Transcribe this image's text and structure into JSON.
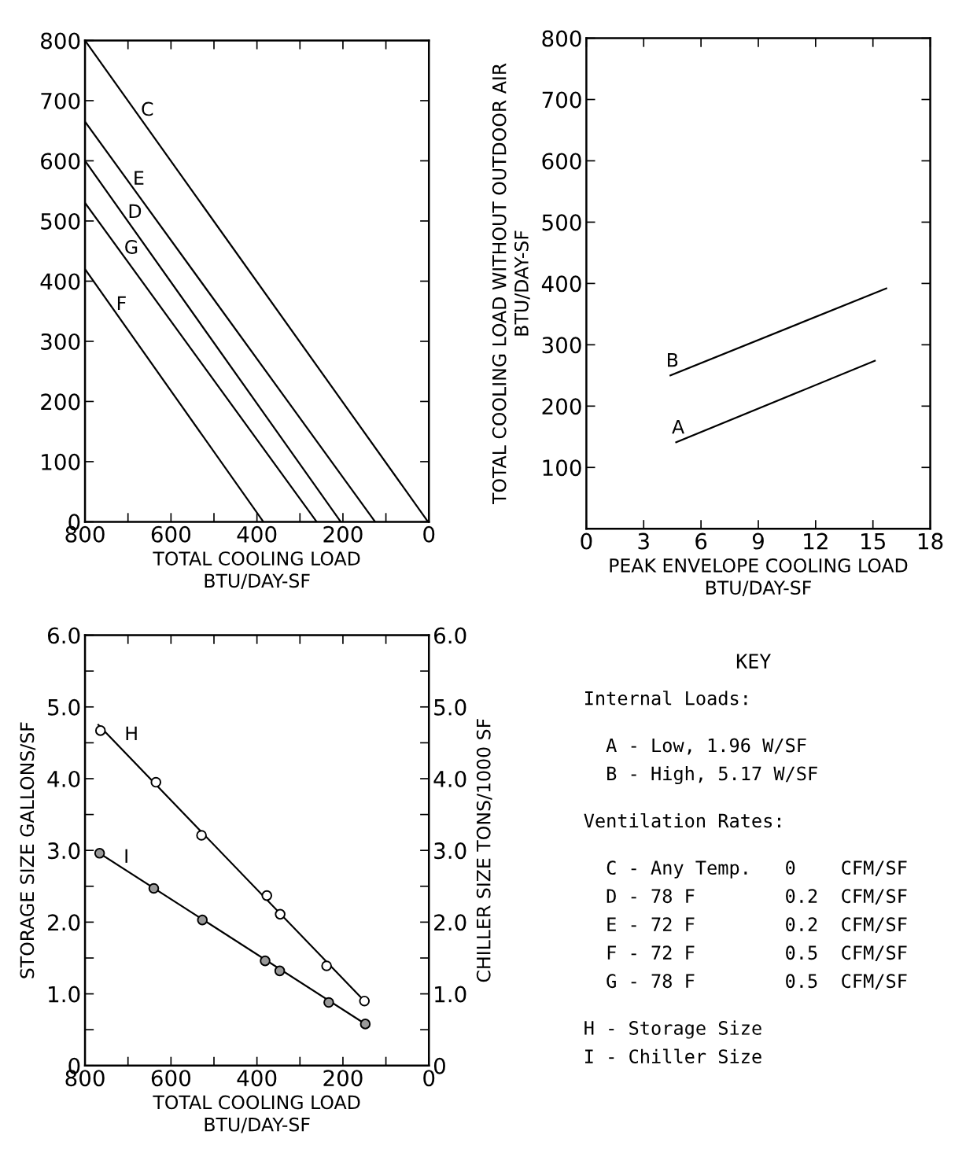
{
  "chart_data": [
    {
      "type": "line",
      "xlabel": "TOTAL COOLING LOAD\nBTU/DAY-SF",
      "xlim": [
        800,
        0
      ],
      "ylim": [
        0,
        800
      ],
      "xticks": [
        800,
        {
          "value": 700,
          "label": null
        },
        600,
        {
          "value": 500,
          "label": null
        },
        400,
        {
          "value": 300,
          "label": null
        },
        200,
        {
          "value": 100,
          "label": null
        },
        0
      ],
      "yticks": [
        0,
        100,
        200,
        300,
        400,
        500,
        600,
        700,
        800
      ],
      "grid": false,
      "legend": false,
      "line_style": "solid",
      "series": [
        {
          "name": "C",
          "color": "#000000",
          "x": [
            800,
            2
          ],
          "values": [
            800,
            0
          ]
        },
        {
          "name": "E",
          "color": "#000000",
          "x": [
            800,
            125
          ],
          "values": [
            665,
            0
          ]
        },
        {
          "name": "D",
          "color": "#000000",
          "x": [
            800,
            205
          ],
          "values": [
            600,
            0
          ]
        },
        {
          "name": "G",
          "color": "#000000",
          "x": [
            800,
            261
          ],
          "values": [
            530,
            0
          ]
        },
        {
          "name": "F",
          "color": "#000000",
          "x": [
            800,
            385
          ],
          "values": [
            420,
            0
          ]
        }
      ]
    },
    {
      "type": "line",
      "xlabel": "PEAK ENVELOPE COOLING LOAD\nBTU/DAY-SF",
      "ylabel": "TOTAL COOLING LOAD WITHOUT OUTDOOR AIR\nBTU/DAY-SF",
      "xlim": [
        0,
        18
      ],
      "ylim": [
        0,
        800
      ],
      "xticks": [
        0,
        3,
        6,
        9,
        12,
        15,
        18
      ],
      "yticks": [
        100,
        200,
        300,
        400,
        500,
        600,
        700,
        800
      ],
      "grid": false,
      "legend": false,
      "line_style": "solid",
      "series": [
        {
          "name": "B",
          "color": "#000000",
          "x": [
            4.4,
            15.7
          ],
          "values": [
            250,
            392
          ]
        },
        {
          "name": "A",
          "color": "#000000",
          "x": [
            4.7,
            15.1
          ],
          "values": [
            141,
            274
          ]
        }
      ]
    },
    {
      "type": "scatter",
      "xlabel": "TOTAL COOLING LOAD\nBTU/DAY-SF",
      "ylabel": "STORAGE SIZE GALLONS/SF",
      "y2label": "CHILLER SIZE TONS/1000 SF",
      "xlim": [
        800,
        0
      ],
      "ylim": [
        0,
        6
      ],
      "y2lim": [
        0,
        6
      ],
      "xticks": [
        800,
        {
          "value": 700,
          "label": null
        },
        600,
        {
          "value": 500,
          "label": null
        },
        400,
        {
          "value": 300,
          "label": null
        },
        200,
        {
          "value": 100,
          "label": null
        },
        0
      ],
      "yticks": [
        0,
        {
          "value": 0.5,
          "label": null
        },
        {
          "value": 1,
          "label": "1.0"
        },
        {
          "value": 1.5,
          "label": null
        },
        {
          "value": 2,
          "label": "2.0"
        },
        {
          "value": 2.5,
          "label": null
        },
        {
          "value": 3,
          "label": "3.0"
        },
        {
          "value": 3.5,
          "label": null
        },
        {
          "value": 4,
          "label": "4.0"
        },
        {
          "value": 4.5,
          "label": null
        },
        {
          "value": 5,
          "label": "5.0"
        },
        {
          "value": 5.5,
          "label": null
        },
        {
          "value": 6,
          "label": "6.0"
        }
      ],
      "y2ticks": [
        0,
        {
          "value": 0.5,
          "label": null
        },
        {
          "value": 1,
          "label": "1.0"
        },
        {
          "value": 1.5,
          "label": null
        },
        {
          "value": 2,
          "label": "2.0"
        },
        {
          "value": 2.5,
          "label": null
        },
        {
          "value": 3,
          "label": "3.0"
        },
        {
          "value": 3.5,
          "label": null
        },
        {
          "value": 4,
          "label": "4.0"
        },
        {
          "value": 4.5,
          "label": null
        },
        {
          "value": 5,
          "label": "5.0"
        },
        {
          "value": 5.5,
          "label": null
        },
        {
          "value": 6,
          "label": "6.0"
        }
      ],
      "grid": false,
      "legend": false,
      "series": [
        {
          "name": "H",
          "type": "scatter",
          "marker": "circle",
          "color": "#ffffff",
          "x": [
            764,
            635,
            529,
            377,
            346,
            238,
            150
          ],
          "values": [
            4.67,
            3.95,
            3.21,
            2.37,
            2.11,
            1.39,
            0.9
          ]
        },
        {
          "type": "line",
          "color": "#000000",
          "x": [
            769,
            150
          ],
          "values": [
            4.75,
            0.9
          ]
        },
        {
          "name": "I",
          "type": "scatter",
          "marker": "circle",
          "color": "#999999",
          "x": [
            766,
            640,
            527,
            381,
            347,
            233,
            148
          ],
          "values": [
            2.96,
            2.47,
            2.03,
            1.46,
            1.32,
            0.88,
            0.58
          ]
        },
        {
          "type": "line",
          "color": "#000000",
          "x": [
            766,
            148
          ],
          "values": [
            2.96,
            0.58
          ]
        }
      ]
    },
    {
      "type": "other",
      "title": "KEY",
      "annotations": [
        "Internal Loads:",
        "  A - Low, 1.96 W/SF",
        "  B - High, 5.17 W/SF",
        "Ventilation Rates:",
        "  C - Any Temp.   0    CFM/SF",
        "  D - 78 F        0.2  CFM/SF",
        "  E - 72 F        0.2  CFM/SF",
        "  F - 72 F        0.5  CFM/SF",
        "  G - 78 F        0.5  CFM/SF",
        "H - Storage Size",
        "I - Chiller Size"
      ]
    }
  ]
}
